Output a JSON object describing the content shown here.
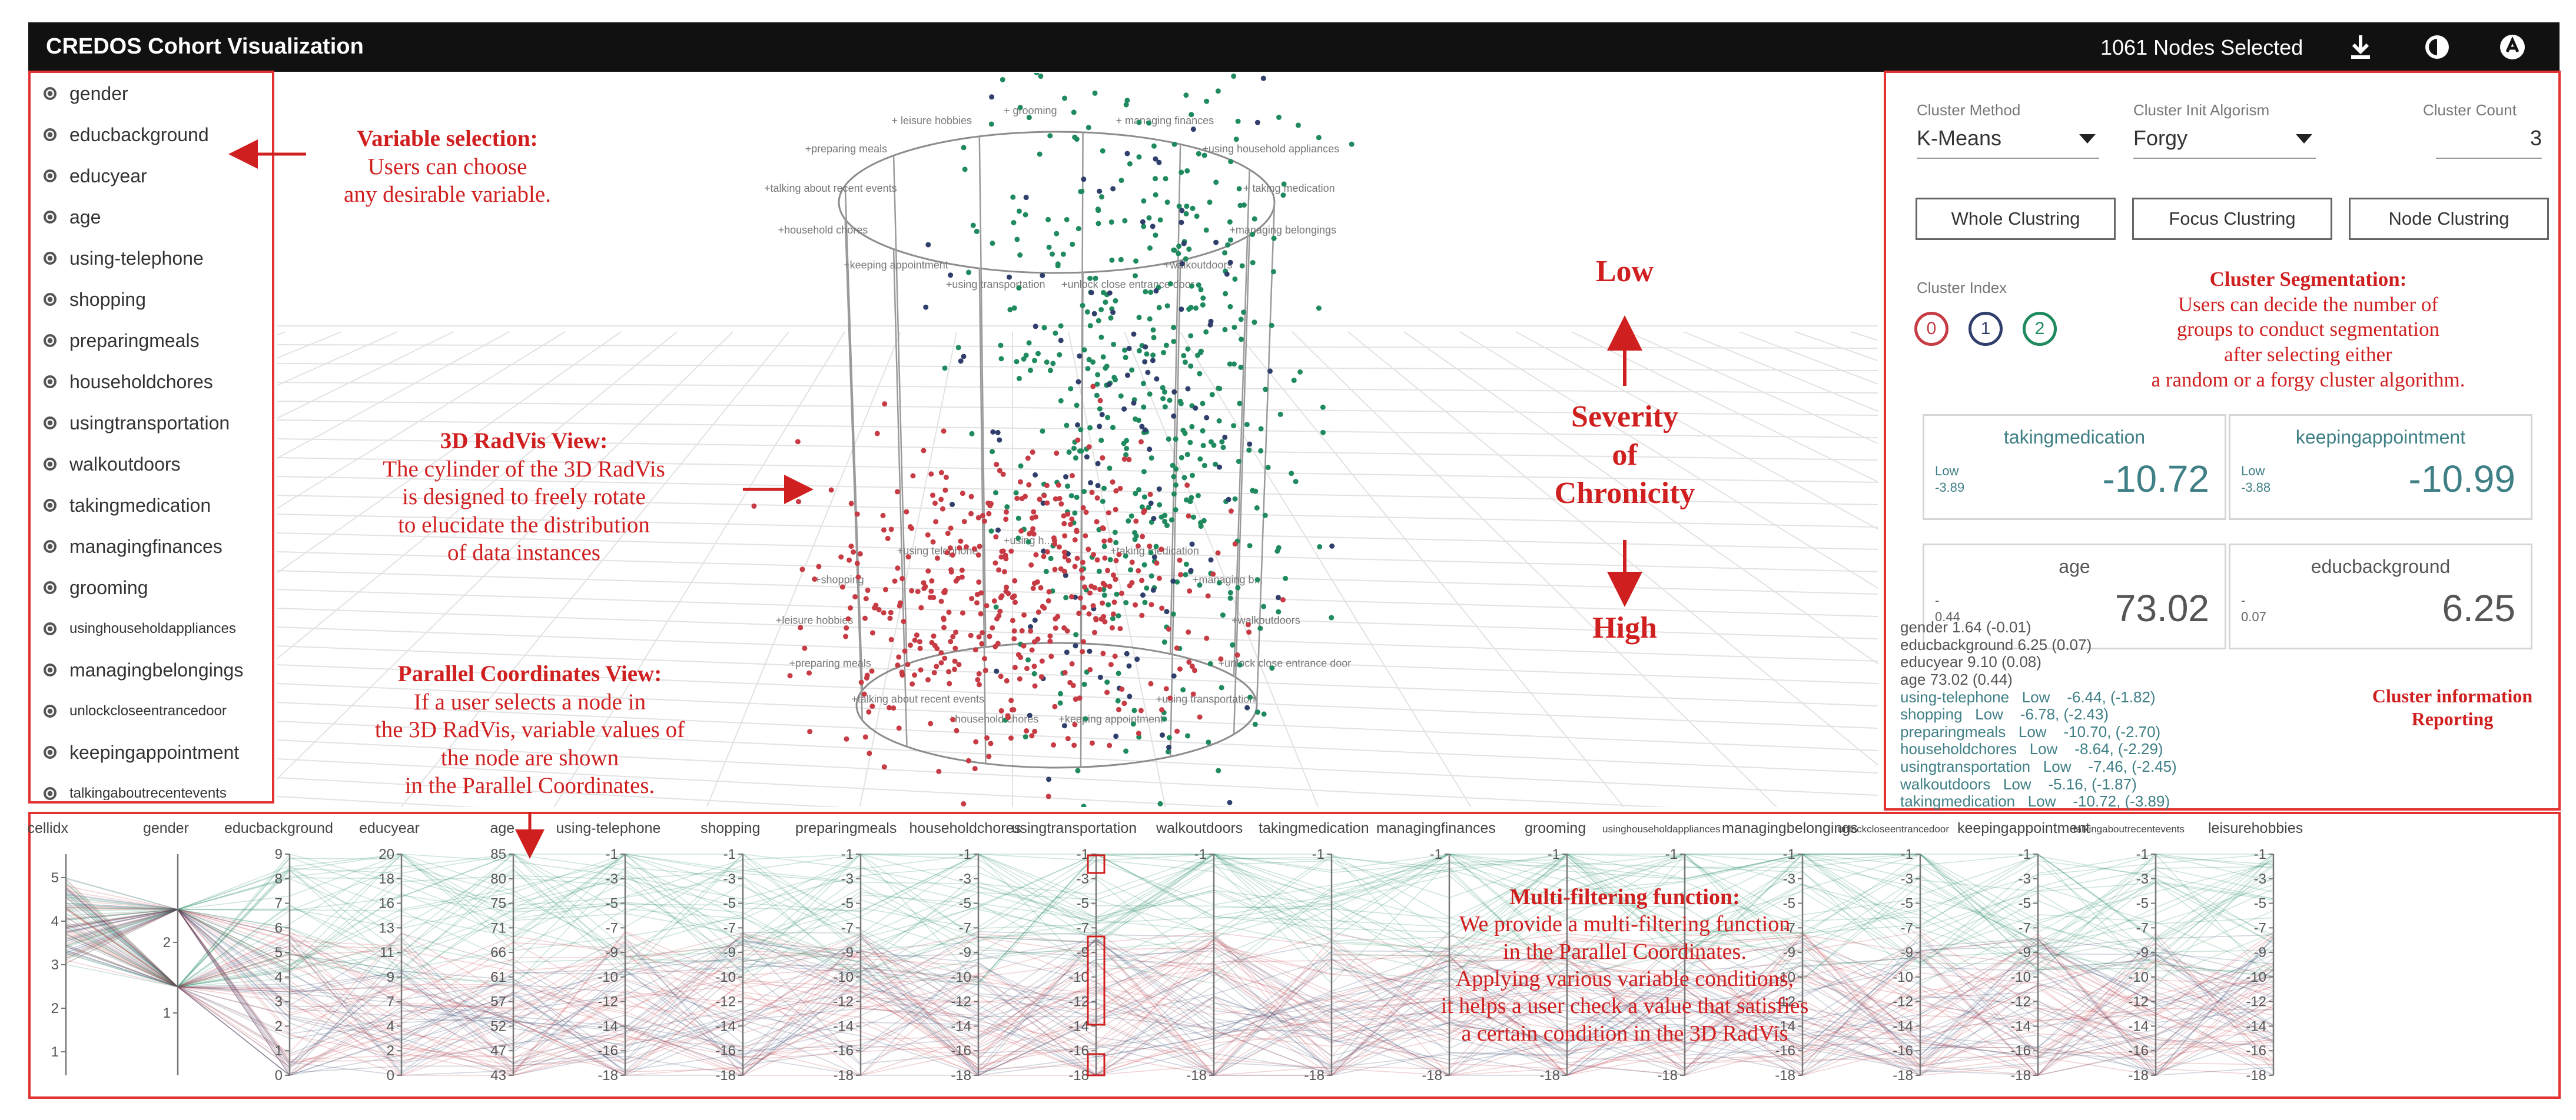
{
  "app": {
    "title": "CREDOS Cohort Visualization",
    "selected": "1061 Nodes Selected",
    "toolbar_icons": [
      "download-icon",
      "eye-icon",
      "github-icon"
    ]
  },
  "sidebar": {
    "items": [
      {
        "label": "gender",
        "small": false
      },
      {
        "label": "educbackground",
        "small": false
      },
      {
        "label": "educyear",
        "small": false
      },
      {
        "label": "age",
        "small": false
      },
      {
        "label": "using-telephone",
        "small": false
      },
      {
        "label": "shopping",
        "small": false
      },
      {
        "label": "preparingmeals",
        "small": false
      },
      {
        "label": "householdchores",
        "small": false
      },
      {
        "label": "usingtransportation",
        "small": false
      },
      {
        "label": "walkoutdoors",
        "small": false
      },
      {
        "label": "takingmedication",
        "small": false
      },
      {
        "label": "managingfinances",
        "small": false
      },
      {
        "label": "grooming",
        "small": false
      },
      {
        "label": "usinghouseholdappliances",
        "small": true
      },
      {
        "label": "managingbelongings",
        "small": false
      },
      {
        "label": "unlockcloseentrancedoor",
        "small": true
      },
      {
        "label": "keepingappointment",
        "small": false
      },
      {
        "label": "talkingaboutrecentevents",
        "small": true
      }
    ]
  },
  "annotations": {
    "variable_selection": {
      "head": "Variable selection:",
      "lines": [
        "Users can choose",
        "any desirable variable."
      ]
    },
    "radvis": {
      "head": "3D RadVis View:",
      "lines": [
        "The cylinder of the 3D RadVis",
        "is designed to freely rotate",
        "to elucidate the distribution",
        "of data instances"
      ]
    },
    "parallel": {
      "head": "Parallel Coordinates View:",
      "lines": [
        "If a user selects a node in",
        "the 3D RadVis, variable values of",
        "the node are shown",
        "in the  Parallel Coordinates."
      ]
    },
    "severity": {
      "low": "Low",
      "lines": [
        "Severity",
        "of",
        "Chronicity"
      ],
      "high": "High"
    },
    "segmentation": {
      "head": "Cluster Segmentation:",
      "lines": [
        "Users can decide the number of",
        "groups to conduct segmentation",
        "after selecting either",
        "a random or a forgy cluster algorithm."
      ]
    },
    "reporting": {
      "lines": [
        "Cluster information",
        "Reporting"
      ]
    },
    "multifilter": {
      "head": "Multi-filtering function:",
      "lines": [
        "We provide a multi-filtering function",
        "in the Parallel Coordinates.",
        "Applying various variable conditions,",
        "it helps a user check a value that satisfies",
        "a certain condition in the 3D RadVis"
      ]
    }
  },
  "radvis": {
    "top_labels": [
      "+ grooming",
      "+ managing finances",
      "+using household appliances",
      "+ taking medication",
      "+managing belongings",
      "+walkoutdoors",
      "+unlock close entrance door",
      "+using transportation",
      "+keeping appointment",
      "+household chores",
      "+talking about recent events",
      "+preparing meals",
      "+ leisure hobbies"
    ],
    "bottom_labels": [
      "+using h...",
      "+taking medication",
      "+managing b...",
      "+walkoutdoors",
      "+unlock close entrance door",
      "+using transportation",
      "+keeping appointment",
      "+household chores",
      "+talking about recent events",
      "+preparing meals",
      "+leisure hobbies",
      "+shopping",
      "+using telephone"
    ]
  },
  "right_panel": {
    "cluster_method_label": "Cluster Method",
    "cluster_method": "K-Means",
    "cluster_init_label": "Cluster Init Algorism",
    "cluster_init": "Forgy",
    "cluster_count_label": "Cluster Count",
    "cluster_count": "3",
    "buttons": [
      "Whole Clustring",
      "Focus Clustring",
      "Node Clustring"
    ],
    "cluster_index_label": "Cluster Index",
    "clusters": [
      {
        "label": "0",
        "color": "#c63b44"
      },
      {
        "label": "1",
        "color": "#2f3e6b"
      },
      {
        "label": "2",
        "color": "#1f8a5e"
      }
    ],
    "cards": [
      {
        "name": "takingmedication",
        "lo1": "Low",
        "lo2": "-3.89",
        "value": "-10.72",
        "plain": false
      },
      {
        "name": "keepingappointment",
        "lo1": "Low",
        "lo2": "-3.88",
        "value": "-10.99",
        "plain": false
      },
      {
        "name": "age",
        "lo1": "-",
        "lo2": "0.44",
        "value": "73.02",
        "plain": true
      },
      {
        "name": "educbackground",
        "lo1": "-",
        "lo2": "0.07",
        "value": "6.25",
        "plain": true
      }
    ],
    "info_lines": [
      {
        "text": "gender 1.64 (-0.01)",
        "color": "#555"
      },
      {
        "text": "educbackground 6.25 (0.07)",
        "color": "#555"
      },
      {
        "text": "educyear 9.10 (0.08)",
        "color": "#555"
      },
      {
        "text": "age 73.02 (0.44)",
        "color": "#555"
      },
      {
        "text": "using-telephone   Low    -6.44, (-1.82)",
        "color": "#3f7f86"
      },
      {
        "text": "shopping   Low    -6.78, (-2.43)",
        "color": "#3f7f86"
      },
      {
        "text": "preparingmeals   Low    -10.70, (-2.70)",
        "color": "#3f7f86"
      },
      {
        "text": "householdchores   Low    -8.64, (-2.29)",
        "color": "#3f7f86"
      },
      {
        "text": "usingtransportation   Low    -7.46, (-2.45)",
        "color": "#3f7f86"
      },
      {
        "text": "walkoutdoors   Low    -5.16, (-1.87)",
        "color": "#3f7f86"
      },
      {
        "text": "takingmedication   Low    -10.72, (-3.89)",
        "color": "#3f7f86"
      }
    ]
  },
  "parallel": {
    "axes": [
      {
        "label": "cellidx",
        "ticks": [
          "5",
          "4",
          "3",
          "2",
          "1"
        ]
      },
      {
        "label": "gender",
        "ticks": [
          "2",
          "1"
        ]
      },
      {
        "label": "educbackground",
        "ticks": [
          "9",
          "8",
          "7",
          "6",
          "5",
          "4",
          "3",
          "2",
          "1",
          "0"
        ]
      },
      {
        "label": "educyear",
        "ticks": [
          "20",
          "18",
          "16",
          "13",
          "11",
          "9",
          "7",
          "4",
          "2",
          "0"
        ]
      },
      {
        "label": "age",
        "ticks": [
          "85",
          "80",
          "75",
          "71",
          "66",
          "61",
          "57",
          "52",
          "47",
          "43"
        ]
      },
      {
        "label": "using-telephone",
        "ticks": [
          "-1",
          "-3",
          "-5",
          "-7",
          "-9",
          "-10",
          "-12",
          "-14",
          "-16",
          "-18"
        ]
      },
      {
        "label": "shopping",
        "ticks": [
          "-1",
          "-3",
          "-5",
          "-7",
          "-9",
          "-10",
          "-12",
          "-14",
          "-16",
          "-18"
        ]
      },
      {
        "label": "preparingmeals",
        "ticks": [
          "-1",
          "-3",
          "-5",
          "-7",
          "-9",
          "-10",
          "-12",
          "-14",
          "-16",
          "-18"
        ]
      },
      {
        "label": "householdchores",
        "ticks": [
          "-1",
          "-3",
          "-5",
          "-7",
          "-9",
          "-10",
          "-12",
          "-14",
          "-16",
          "-18"
        ]
      },
      {
        "label": "usingtransportation",
        "ticks": [
          "-1",
          "-3",
          "-5",
          "-7",
          "-9",
          "-10",
          "-12",
          "-14",
          "-16",
          "-18"
        ]
      },
      {
        "label": "walkoutdoors",
        "ticks": [
          "-1",
          "-18"
        ]
      },
      {
        "label": "takingmedication",
        "ticks": [
          "-1",
          "-18"
        ]
      },
      {
        "label": "managingfinances",
        "ticks": [
          "-1",
          "-18"
        ]
      },
      {
        "label": "grooming",
        "ticks": [
          "-1",
          "-18"
        ]
      },
      {
        "label": "usinghouseholdappliances",
        "ticks": [
          "-1",
          "-18"
        ]
      },
      {
        "label": "managingbelongings",
        "ticks": [
          "-1",
          "-3",
          "-5",
          "-7",
          "-9",
          "-10",
          "-12",
          "-14",
          "-16",
          "-18"
        ]
      },
      {
        "label": "unlockcloseentrancedoor",
        "ticks": [
          "-1",
          "-3",
          "-5",
          "-7",
          "-9",
          "-10",
          "-12",
          "-14",
          "-16",
          "-18"
        ]
      },
      {
        "label": "keepingappointment",
        "ticks": [
          "-1",
          "-3",
          "-5",
          "-7",
          "-9",
          "-10",
          "-12",
          "-14",
          "-16",
          "-18"
        ]
      },
      {
        "label": "talkingaboutrecentevents",
        "ticks": [
          "-1",
          "-3",
          "-5",
          "-7",
          "-9",
          "-10",
          "-12",
          "-14",
          "-16",
          "-18"
        ]
      },
      {
        "label": "leisurehobbies",
        "ticks": [
          "-1",
          "-3",
          "-5",
          "-7",
          "-9",
          "-10",
          "-12",
          "-14",
          "-16",
          "-18"
        ]
      }
    ]
  }
}
